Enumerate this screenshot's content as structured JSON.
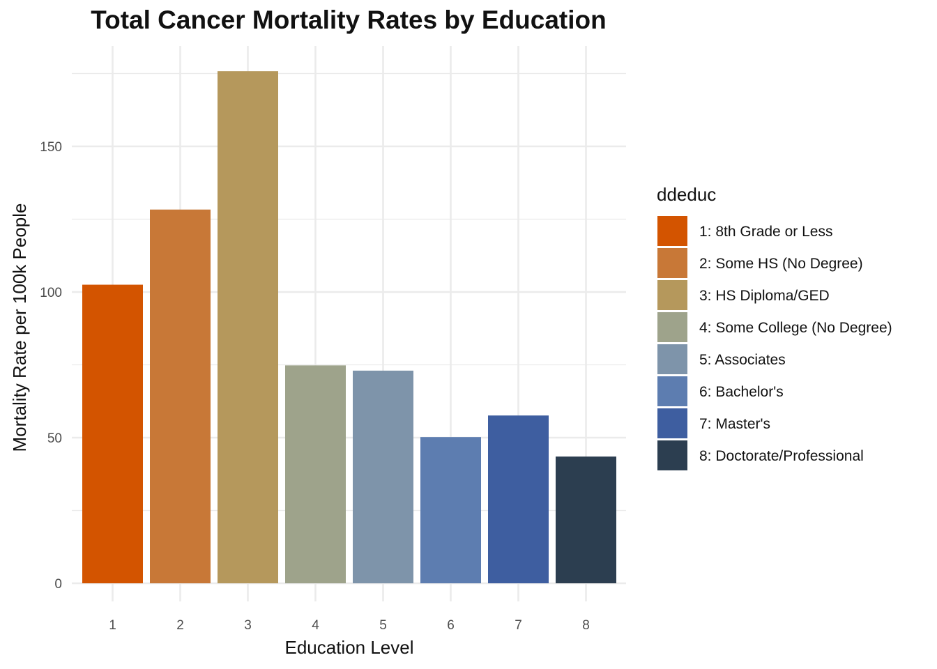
{
  "chart_data": {
    "type": "bar",
    "title": "Total Cancer Mortality Rates by Education",
    "xlabel": "Education Level",
    "ylabel": "Mortality Rate per 100k People",
    "categories": [
      "1",
      "2",
      "3",
      "4",
      "5",
      "6",
      "7",
      "8"
    ],
    "values": [
      102.5,
      128.3,
      175.8,
      74.8,
      73.0,
      50.2,
      57.6,
      43.5
    ],
    "colors": [
      "#D35400",
      "#C87837",
      "#B5985C",
      "#9EA38B",
      "#7E94AA",
      "#5D7DB0",
      "#3E5EA0",
      "#2C3E50"
    ],
    "ylim": [
      0,
      176
    ],
    "yticks": [
      0,
      50,
      100,
      150
    ],
    "grid": true,
    "legend": {
      "title": "ddeduc",
      "position": "right",
      "entries": [
        "1: 8th Grade or Less",
        "2: Some HS (No Degree)",
        "3: HS Diploma/GED",
        "4: Some College (No Degree)",
        "5: Associates",
        "6: Bachelor's",
        "7: Master's",
        "8: Doctorate/Professional"
      ]
    }
  }
}
